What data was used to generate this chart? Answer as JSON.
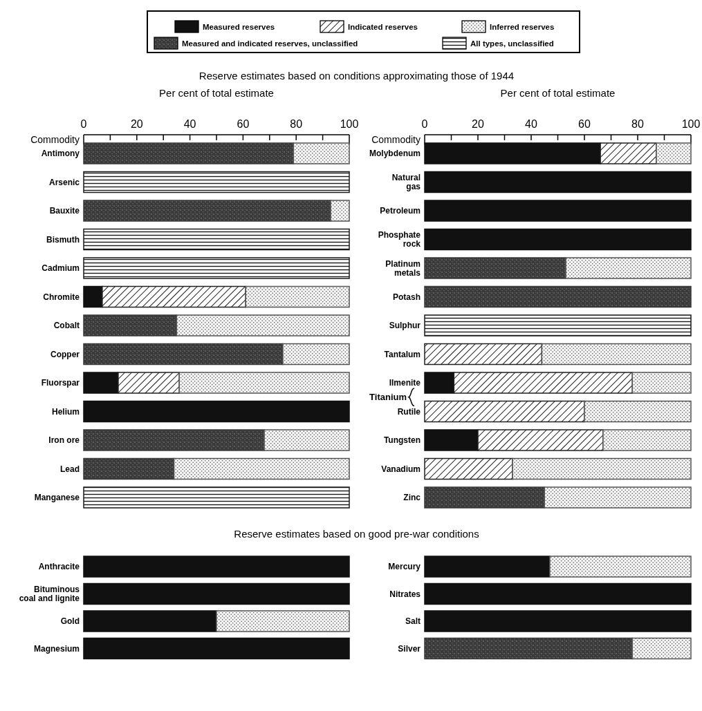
{
  "chart_data": [
    {
      "type": "bar",
      "orientation": "horizontal",
      "stacked": true,
      "title": "Reserve estimates based on conditions approximating those of 1944",
      "xlabel": "Per cent of total estimate",
      "ylabel": "Commodity",
      "legend": "top",
      "xlim": [
        0,
        100
      ],
      "xticks": [
        0,
        {
          "value": 10,
          "label": null
        },
        20,
        {
          "value": 30,
          "label": null
        },
        40,
        {
          "value": 50,
          "label": null
        },
        60,
        {
          "value": 70,
          "label": null
        },
        80,
        {
          "value": 90,
          "label": null
        },
        100
      ],
      "categories": [
        "Antimony",
        "Arsenic",
        "Bauxite",
        "Bismuth",
        "Cadmium",
        "Chromite",
        "Cobalt",
        "Copper",
        "Fluorspar",
        "Helium",
        "Iron ore",
        "Lead",
        "Manganese"
      ],
      "series": [
        {
          "name": "Measured reserves",
          "color": "#111111",
          "values": [
            null,
            null,
            null,
            null,
            null,
            7,
            null,
            null,
            13,
            100,
            null,
            null,
            null
          ]
        },
        {
          "name": "Measured and indicated reserves, unclassified",
          "color": "#3a3a3a",
          "values": [
            79,
            null,
            93,
            null,
            null,
            null,
            35,
            75,
            null,
            null,
            68,
            34,
            null
          ]
        },
        {
          "name": "Indicated reserves",
          "color": "#202020",
          "values": [
            null,
            null,
            null,
            null,
            null,
            54,
            null,
            null,
            23,
            null,
            null,
            null,
            null
          ]
        },
        {
          "name": "Inferred reserves",
          "color": "#555555",
          "values": [
            21,
            null,
            7,
            null,
            null,
            39,
            65,
            25,
            64,
            null,
            32,
            66,
            null
          ]
        },
        {
          "name": "All types, unclassified",
          "color": "#1a1a1a",
          "values": [
            null,
            100,
            null,
            100,
            100,
            null,
            null,
            null,
            null,
            null,
            null,
            null,
            100
          ]
        }
      ]
    },
    {
      "type": "bar",
      "orientation": "horizontal",
      "stacked": true,
      "xlabel": "Per cent of total estimate",
      "ylabel": "Commodity",
      "xlim": [
        0,
        100
      ],
      "xticks": [
        0,
        {
          "value": 10,
          "label": null
        },
        20,
        {
          "value": 30,
          "label": null
        },
        40,
        {
          "value": 50,
          "label": null
        },
        60,
        {
          "value": 70,
          "label": null
        },
        80,
        {
          "value": 90,
          "label": null
        },
        100
      ],
      "categories": [
        "Molybdenum",
        "Natural gas",
        "Petroleum",
        "Phosphate rock",
        "Platinum metals",
        "Potash",
        "Sulphur",
        "Tantalum",
        "Ilmenite",
        "Rutile",
        "Tungsten",
        "Vanadium",
        "Zinc"
      ],
      "annotations": [
        "Titanium"
      ],
      "series": [
        {
          "color": "#111111",
          "values": [
            66,
            100,
            100,
            100,
            null,
            null,
            null,
            null,
            11,
            null,
            20,
            null,
            null
          ]
        },
        {
          "color": "#3a3a3a",
          "values": [
            null,
            null,
            null,
            null,
            53,
            100,
            null,
            null,
            null,
            null,
            null,
            null,
            45
          ]
        },
        {
          "color": "#202020",
          "values": [
            21,
            null,
            null,
            null,
            null,
            null,
            null,
            44,
            67,
            60,
            47,
            33,
            null
          ]
        },
        {
          "color": "#555555",
          "values": [
            13,
            null,
            null,
            null,
            47,
            null,
            null,
            56,
            22,
            40,
            33,
            67,
            55
          ]
        },
        {
          "color": "#1a1a1a",
          "values": [
            null,
            null,
            null,
            null,
            null,
            null,
            100,
            null,
            null,
            null,
            null,
            null,
            null
          ]
        }
      ]
    },
    {
      "type": "bar",
      "orientation": "horizontal",
      "stacked": true,
      "title": "Reserve estimates based on good pre-war conditions",
      "tick_labels": false,
      "xlim": [
        0,
        100
      ],
      "categories": [
        "Anthracite",
        "Bituminous coal and lignite",
        "Gold",
        "Magnesium"
      ],
      "series": [
        {
          "color": "#111111",
          "values": [
            100,
            100,
            50,
            100
          ]
        },
        {
          "color": "#555555",
          "values": [
            null,
            null,
            50,
            null
          ]
        }
      ]
    },
    {
      "type": "bar",
      "orientation": "horizontal",
      "stacked": true,
      "tick_labels": false,
      "xlim": [
        0,
        100
      ],
      "categories": [
        "Mercury",
        "Nitrates",
        "Salt",
        "Silver"
      ],
      "series": [
        {
          "color": "#111111",
          "values": [
            47,
            100,
            100,
            null
          ]
        },
        {
          "color": "#3a3a3a",
          "values": [
            null,
            null,
            null,
            78
          ]
        },
        {
          "color": "#555555",
          "values": [
            53,
            null,
            null,
            22
          ]
        }
      ]
    }
  ]
}
